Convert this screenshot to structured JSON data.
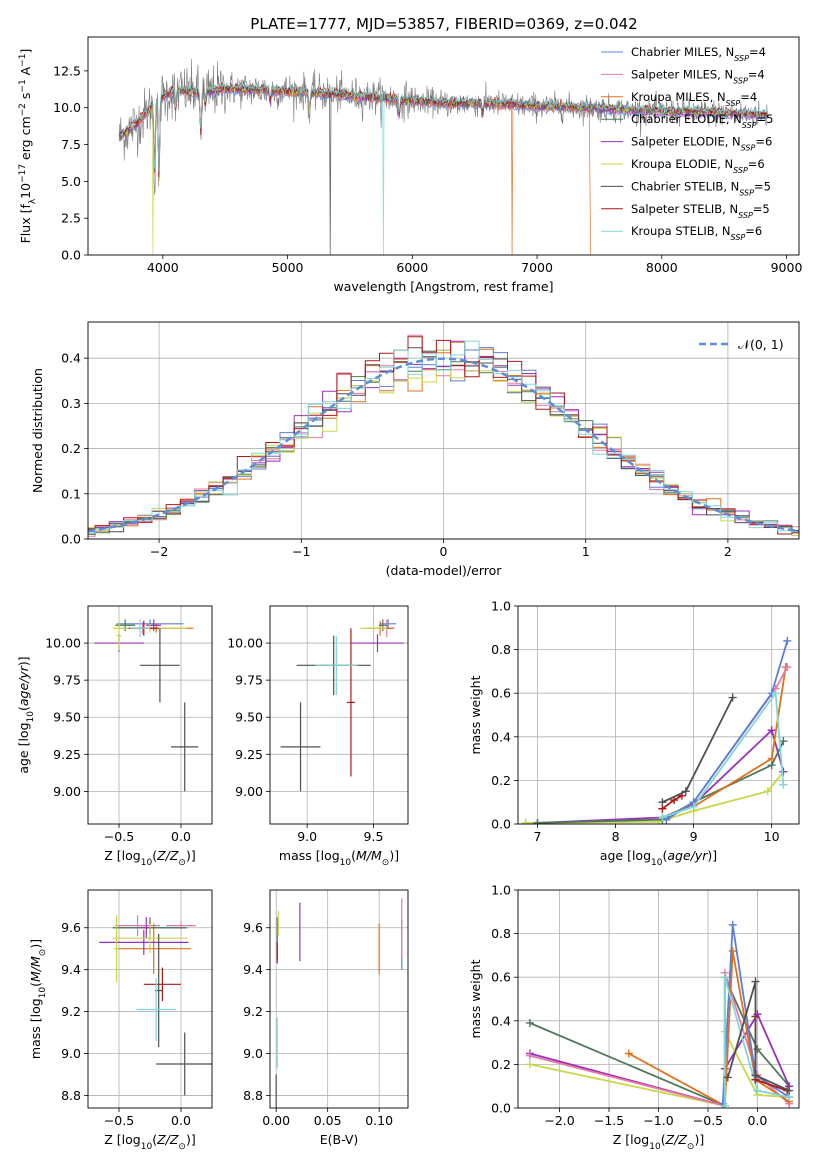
{
  "figure": {
    "title": "PLATE=1777, MJD=53857, FIBERID=0369, z=0.042"
  },
  "colors": {
    "Chabrier MILES": "#5b7fd9",
    "Salpeter MILES": "#e87aa8",
    "Kroupa MILES": "#e0701e",
    "Chabrier ELODIE": "#4e7a5a",
    "Salpeter ELODIE": "#9b30b8",
    "Kroupa ELODIE": "#c8d84a",
    "Chabrier STELIB": "#505050",
    "Salpeter STELIB": "#b01818",
    "Kroupa STELIB": "#7ed8d8"
  },
  "chart_data": [
    {
      "id": "spectrum",
      "type": "line",
      "xlabel": "wavelength [Angstrom, rest frame]",
      "ylabel": "Flux [f_λ 10^-17 erg cm^-2 s^-1 A^-1]",
      "xlim": [
        3400,
        9100
      ],
      "ylim": [
        0,
        14.8
      ],
      "xticks": [
        4000,
        5000,
        6000,
        7000,
        8000,
        9000
      ],
      "yticks": [
        0.0,
        2.5,
        5.0,
        7.5,
        10.0,
        12.5
      ],
      "grid": false,
      "legend_position": "right",
      "legend": [
        {
          "name": "Chabrier MILES",
          "nssp": "4"
        },
        {
          "name": "Salpeter MILES",
          "nssp": "4"
        },
        {
          "name": "Kroupa MILES",
          "nssp": "4"
        },
        {
          "name": "Chabrier ELODIE",
          "nssp": "5"
        },
        {
          "name": "Salpeter ELODIE",
          "nssp": "6"
        },
        {
          "name": "Kroupa ELODIE",
          "nssp": "6"
        },
        {
          "name": "Chabrier STELIB",
          "nssp": "5"
        },
        {
          "name": "Salpeter STELIB",
          "nssp": "5"
        },
        {
          "name": "Kroupa STELIB",
          "nssp": "6"
        }
      ],
      "continuum": [
        [
          3650,
          8.0
        ],
        [
          3800,
          9.0
        ],
        [
          3950,
          10.5
        ],
        [
          4100,
          11.2
        ],
        [
          4300,
          11.0
        ],
        [
          4500,
          11.3
        ],
        [
          4800,
          11.2
        ],
        [
          5100,
          11.1
        ],
        [
          5400,
          10.9
        ],
        [
          5700,
          10.7
        ],
        [
          6000,
          10.5
        ],
        [
          6300,
          10.3
        ],
        [
          6600,
          10.3
        ],
        [
          7000,
          10.1
        ],
        [
          7400,
          10.0
        ],
        [
          7800,
          9.8
        ],
        [
          8200,
          9.7
        ],
        [
          8600,
          9.6
        ],
        [
          8850,
          9.5
        ]
      ],
      "absorption_lines": [
        {
          "x": 3934,
          "depth": 5.5
        },
        {
          "x": 3969,
          "depth": 6.0
        },
        {
          "x": 4102,
          "depth": 1.5
        },
        {
          "x": 4304,
          "depth": 3.0
        },
        {
          "x": 4341,
          "depth": 1.0
        },
        {
          "x": 4861,
          "depth": 0.8
        },
        {
          "x": 5175,
          "depth": 1.5
        },
        {
          "x": 5895,
          "depth": 1.2
        },
        {
          "x": 6563,
          "depth": 0.8
        }
      ],
      "model_dropouts": [
        {
          "x": 3922,
          "series": "Kroupa ELODIE"
        },
        {
          "x": 5340,
          "series": "Chabrier STELIB"
        },
        {
          "x": 5770,
          "series": "Kroupa STELIB"
        },
        {
          "x": 6800,
          "series": "Kroupa MILES"
        }
      ],
      "model_cutoff": {
        "x": 7420,
        "series": "Kroupa MILES"
      }
    },
    {
      "id": "residuals",
      "type": "histogram",
      "xlabel": "(data-model)/error",
      "ylabel": "Normed distribution",
      "xlim": [
        -2.5,
        2.5
      ],
      "ylim": [
        0,
        0.48
      ],
      "xticks": [
        -2,
        -1,
        0,
        1,
        2
      ],
      "yticks": [
        0.0,
        0.1,
        0.2,
        0.3,
        0.4
      ],
      "bin_width": 0.1,
      "grid": true,
      "legend_position": "top-right",
      "reference": {
        "name": "𝒩(0, 1)",
        "mean": 0,
        "sigma": 1
      }
    },
    {
      "id": "age_vs_Z",
      "type": "errorbar",
      "xlabel": "Z [log10(Z/Z⊙)]",
      "ylabel": "age [log10(age/yr)]",
      "xlim": [
        -0.75,
        0.25
      ],
      "ylim": [
        8.78,
        10.25
      ],
      "xticks": [
        -0.5,
        0.0
      ],
      "yticks": [
        9.0,
        9.25,
        9.5,
        9.75,
        10.0
      ],
      "grid": true,
      "points": [
        {
          "series": "Chabrier MILES",
          "x": -0.25,
          "xerr": 0.27,
          "y": 10.13,
          "yerr": 0.03
        },
        {
          "series": "Salpeter MILES",
          "x": -0.31,
          "xerr": 0.08,
          "y": 10.1,
          "yerr": 0.04
        },
        {
          "series": "Kroupa MILES",
          "x": -0.2,
          "xerr": 0.3,
          "y": 10.1,
          "yerr": 0.03
        },
        {
          "series": "Chabrier ELODIE",
          "x": -0.45,
          "xerr": 0.08,
          "y": 10.12,
          "yerr": 0.04
        },
        {
          "series": "Salpeter ELODIE",
          "x": -0.5,
          "xerr": 0.2,
          "y": 10.0,
          "yerr": 0.06
        },
        {
          "series": "Salpeter ELODIE",
          "x": -0.22,
          "xerr": 0.06,
          "y": 10.12,
          "yerr": 0.04
        },
        {
          "series": "Kroupa ELODIE",
          "x": -0.25,
          "xerr": 0.3,
          "y": 10.1,
          "yerr": 0.03
        },
        {
          "series": "Kroupa ELODIE",
          "x": -0.5,
          "xerr": 0.02,
          "y": 10.05,
          "yerr": 0.1
        },
        {
          "series": "Chabrier STELIB",
          "x": -0.17,
          "xerr": 0.16,
          "y": 9.85,
          "yerr": 0.25
        },
        {
          "series": "Chabrier STELIB",
          "x": 0.03,
          "xerr": 0.11,
          "y": 9.3,
          "yerr": 0.3
        },
        {
          "series": "Salpeter STELIB",
          "x": -0.3,
          "xerr": 0.12,
          "y": 10.1,
          "yerr": 0.05
        },
        {
          "series": "Kroupa STELIB",
          "x": -0.33,
          "xerr": 0.08,
          "y": 10.1,
          "yerr": 0.06
        }
      ]
    },
    {
      "id": "age_vs_mass",
      "type": "errorbar",
      "xlabel": "mass [log10(M/M⊙)]",
      "ylabel": "",
      "xlim": [
        8.72,
        9.76
      ],
      "ylim": [
        8.78,
        10.25
      ],
      "xticks": [
        9.0,
        9.5
      ],
      "yticks": [
        9.0,
        9.25,
        9.5,
        9.75,
        10.0
      ],
      "grid": true,
      "points": [
        {
          "series": "Chabrier MILES",
          "x": 9.61,
          "xerr": 0.06,
          "y": 10.13,
          "yerr": 0.03
        },
        {
          "series": "Salpeter MILES",
          "x": 9.6,
          "xerr": 0.06,
          "y": 10.1,
          "yerr": 0.06
        },
        {
          "series": "Kroupa MILES",
          "x": 9.55,
          "xerr": 0.1,
          "y": 10.1,
          "yerr": 0.05
        },
        {
          "series": "Chabrier ELODIE",
          "x": 9.57,
          "xerr": 0.03,
          "y": 10.12,
          "yerr": 0.04
        },
        {
          "series": "Salpeter ELODIE",
          "x": 9.53,
          "xerr": 0.2,
          "y": 10.0,
          "yerr": 0.06
        },
        {
          "series": "Kroupa ELODIE",
          "x": 9.5,
          "xerr": 0.1,
          "y": 10.1,
          "yerr": 0.05
        },
        {
          "series": "Chabrier STELIB",
          "x": 9.2,
          "xerr": 0.28,
          "y": 9.85,
          "yerr": 0.2
        },
        {
          "series": "Chabrier STELIB",
          "x": 8.95,
          "xerr": 0.15,
          "y": 9.3,
          "yerr": 0.3
        },
        {
          "series": "Salpeter STELIB",
          "x": 9.33,
          "xerr": 0.03,
          "y": 9.6,
          "yerr": 0.5
        },
        {
          "series": "Kroupa STELIB",
          "x": 9.22,
          "xerr": 0.16,
          "y": 9.85,
          "yerr": 0.2
        }
      ]
    },
    {
      "id": "weight_vs_age",
      "type": "line",
      "xlabel": "age [log10(age/yr)]",
      "ylabel": "mass weight",
      "xlim": [
        6.75,
        10.35
      ],
      "ylim": [
        0,
        1.0
      ],
      "xticks": [
        7,
        8,
        9,
        10
      ],
      "yticks": [
        0.0,
        0.2,
        0.4,
        0.6,
        0.8,
        1.0
      ],
      "grid": true,
      "series": [
        {
          "name": "Kroupa ELODIE",
          "x": [
            6.85,
            8.55,
            9.0,
            9.95,
            10.15
          ],
          "y": [
            0.005,
            0.01,
            0.06,
            0.15,
            0.24
          ]
        },
        {
          "name": "Salpeter ELODIE",
          "x": [
            7.0,
            8.6,
            9.0,
            10.0,
            10.15
          ],
          "y": [
            0.005,
            0.03,
            0.09,
            0.43,
            0.24
          ]
        },
        {
          "name": "Chabrier ELODIE",
          "x": [
            7.0,
            8.6,
            9.0,
            10.0,
            10.15
          ],
          "y": [
            0.005,
            0.02,
            0.1,
            0.27,
            0.38
          ]
        },
        {
          "name": "Kroupa MILES",
          "x": [
            8.6,
            9.0,
            10.0,
            10.18
          ],
          "y": [
            0.03,
            0.08,
            0.3,
            0.72
          ]
        },
        {
          "name": "Salpeter MILES",
          "x": [
            8.65,
            9.0,
            10.05,
            10.2
          ],
          "y": [
            0.02,
            0.1,
            0.62,
            0.72
          ]
        },
        {
          "name": "Chabrier MILES",
          "x": [
            8.65,
            9.0,
            10.0,
            10.2
          ],
          "y": [
            0.02,
            0.1,
            0.6,
            0.84
          ]
        },
        {
          "name": "Kroupa STELIB",
          "x": [
            8.6,
            9.0,
            10.05,
            10.15
          ],
          "y": [
            0.03,
            0.08,
            0.6,
            0.18
          ]
        },
        {
          "name": "Salpeter STELIB",
          "x": [
            8.6,
            8.75,
            8.85
          ],
          "y": [
            0.07,
            0.11,
            0.13
          ]
        },
        {
          "name": "Chabrier STELIB",
          "x": [
            8.6,
            8.9,
            9.5
          ],
          "y": [
            0.1,
            0.15,
            0.58
          ]
        }
      ]
    },
    {
      "id": "mass_vs_Z",
      "type": "errorbar",
      "xlabel": "Z [log10(Z/Z⊙)]",
      "ylabel": "mass [log10(M/M⊙)]",
      "xlim": [
        -0.75,
        0.25
      ],
      "ylim": [
        8.74,
        9.78
      ],
      "xticks": [
        -0.5,
        0.0
      ],
      "yticks": [
        8.8,
        9.0,
        9.2,
        9.4,
        9.6
      ],
      "grid": true,
      "points": [
        {
          "series": "Chabrier MILES",
          "x": -0.25,
          "xerr": 0.28,
          "y": 9.6,
          "yerr": 0.03
        },
        {
          "series": "Salpeter MILES",
          "x": -0.35,
          "xerr": 0.18,
          "y": 9.61,
          "yerr": 0.05
        },
        {
          "series": "Salpeter MILES",
          "x": 0.0,
          "xerr": 0.12,
          "y": 9.61,
          "yerr": 0.02
        },
        {
          "series": "Kroupa MILES",
          "x": -0.22,
          "xerr": 0.3,
          "y": 9.5,
          "yerr": 0.12
        },
        {
          "series": "Chabrier ELODIE",
          "x": -0.25,
          "xerr": 0.3,
          "y": 9.6,
          "yerr": 0.05
        },
        {
          "series": "Salpeter ELODIE",
          "x": -0.3,
          "xerr": 0.36,
          "y": 9.53,
          "yerr": 0.06
        },
        {
          "series": "Salpeter ELODIE",
          "x": -0.28,
          "xerr": 0.04,
          "y": 9.6,
          "yerr": 0.05
        },
        {
          "series": "Kroupa ELODIE",
          "x": -0.25,
          "xerr": 0.3,
          "y": 9.55,
          "yerr": 0.07
        },
        {
          "series": "Kroupa ELODIE",
          "x": -0.52,
          "xerr": 0.02,
          "y": 9.5,
          "yerr": 0.16
        },
        {
          "series": "Chabrier STELIB",
          "x": -0.18,
          "xerr": 0.03,
          "y": 9.3,
          "yerr": 0.27
        },
        {
          "series": "Chabrier STELIB",
          "x": 0.03,
          "xerr": 0.23,
          "y": 8.95,
          "yerr": 0.15
        },
        {
          "series": "Salpeter STELIB",
          "x": -0.15,
          "xerr": 0.15,
          "y": 9.33,
          "yerr": 0.08
        },
        {
          "series": "Kroupa STELIB",
          "x": -0.2,
          "xerr": 0.16,
          "y": 9.21,
          "yerr": 0.15
        }
      ]
    },
    {
      "id": "mass_vs_EBV",
      "type": "errorbar",
      "xlabel": "E(B-V)",
      "ylabel": "",
      "xlim": [
        -0.006,
        0.128
      ],
      "ylim": [
        8.74,
        9.78
      ],
      "xticks": [
        0.0,
        0.05,
        0.1
      ],
      "yticks": [
        8.8,
        9.0,
        9.2,
        9.4,
        9.6
      ],
      "grid": true,
      "points": [
        {
          "series": "Chabrier MILES",
          "x": 0.122,
          "xerr": 0,
          "y": 9.52,
          "yerr": 0.12
        },
        {
          "series": "Salpeter MILES",
          "x": 0.122,
          "xerr": 0,
          "y": 9.6,
          "yerr": 0.14
        },
        {
          "series": "Kroupa MILES",
          "x": 0.1,
          "xerr": 0,
          "y": 9.5,
          "yerr": 0.12
        },
        {
          "series": "Chabrier ELODIE",
          "x": 0.001,
          "xerr": 0,
          "y": 9.55,
          "yerr": 0.1
        },
        {
          "series": "Salpeter ELODIE",
          "x": 0.023,
          "xerr": 0,
          "y": 9.58,
          "yerr": 0.14
        },
        {
          "series": "Kroupa ELODIE",
          "x": 0.002,
          "xerr": 0,
          "y": 9.62,
          "yerr": 0.06
        },
        {
          "series": "Chabrier STELIB",
          "x": 0.0,
          "xerr": 0,
          "y": 8.8,
          "yerr": 0.1
        },
        {
          "series": "Salpeter STELIB",
          "x": 0.001,
          "xerr": 0,
          "y": 9.48,
          "yerr": 0.05
        },
        {
          "series": "Kroupa STELIB",
          "x": 0.001,
          "xerr": 0,
          "y": 9.05,
          "yerr": 0.12
        }
      ]
    },
    {
      "id": "weight_vs_Z",
      "type": "line",
      "xlabel": "Z [log10(Z/Z⊙)]",
      "ylabel": "mass weight",
      "xlim": [
        -2.42,
        0.42
      ],
      "ylim": [
        0,
        1.0
      ],
      "xticks": [
        -2.0,
        -1.5,
        -1.0,
        -0.5,
        0.0
      ],
      "yticks": [
        0.0,
        0.2,
        0.4,
        0.6,
        0.8,
        1.0
      ],
      "grid": true,
      "series": [
        {
          "name": "Chabrier ELODIE",
          "x": [
            -2.3,
            -0.33,
            -0.33,
            0.0,
            0.32
          ],
          "y": [
            0.39,
            0.01,
            0.6,
            0.27,
            0.1
          ]
        },
        {
          "name": "Salpeter ELODIE",
          "x": [
            -2.3,
            -0.33,
            -0.33,
            0.0,
            0.32
          ],
          "y": [
            0.25,
            0.01,
            0.18,
            0.43,
            0.1
          ]
        },
        {
          "name": "Kroupa ELODIE",
          "x": [
            -2.3,
            -0.33,
            -0.33,
            0.0,
            0.32
          ],
          "y": [
            0.2,
            0.01,
            0.35,
            0.06,
            0.05
          ]
        },
        {
          "name": "Salpeter MILES",
          "x": [
            -2.3,
            -0.33,
            -0.33,
            0.0,
            0.32
          ],
          "y": [
            0.24,
            0.01,
            0.62,
            0.15,
            0.02
          ]
        },
        {
          "name": "Kroupa MILES",
          "x": [
            -1.3,
            -0.33,
            -0.25,
            -0.02,
            0.32
          ],
          "y": [
            0.25,
            0.01,
            0.72,
            0.13,
            0.03
          ]
        },
        {
          "name": "Chabrier MILES",
          "x": [
            -0.35,
            -0.25,
            -0.02,
            0.32
          ],
          "y": [
            0.02,
            0.84,
            0.15,
            0.05
          ]
        },
        {
          "name": "Kroupa STELIB",
          "x": [
            -0.33,
            -0.33,
            0.0,
            0.32
          ],
          "y": [
            0.01,
            0.6,
            0.08,
            0.05
          ]
        },
        {
          "name": "Salpeter STELIB",
          "x": [
            -0.02,
            -0.02,
            0.3
          ],
          "y": [
            0.42,
            0.13,
            0.08
          ]
        },
        {
          "name": "Chabrier STELIB",
          "x": [
            -0.3,
            -0.02,
            -0.02,
            0.32
          ],
          "y": [
            0.14,
            0.58,
            0.15,
            0.08
          ]
        }
      ]
    }
  ]
}
